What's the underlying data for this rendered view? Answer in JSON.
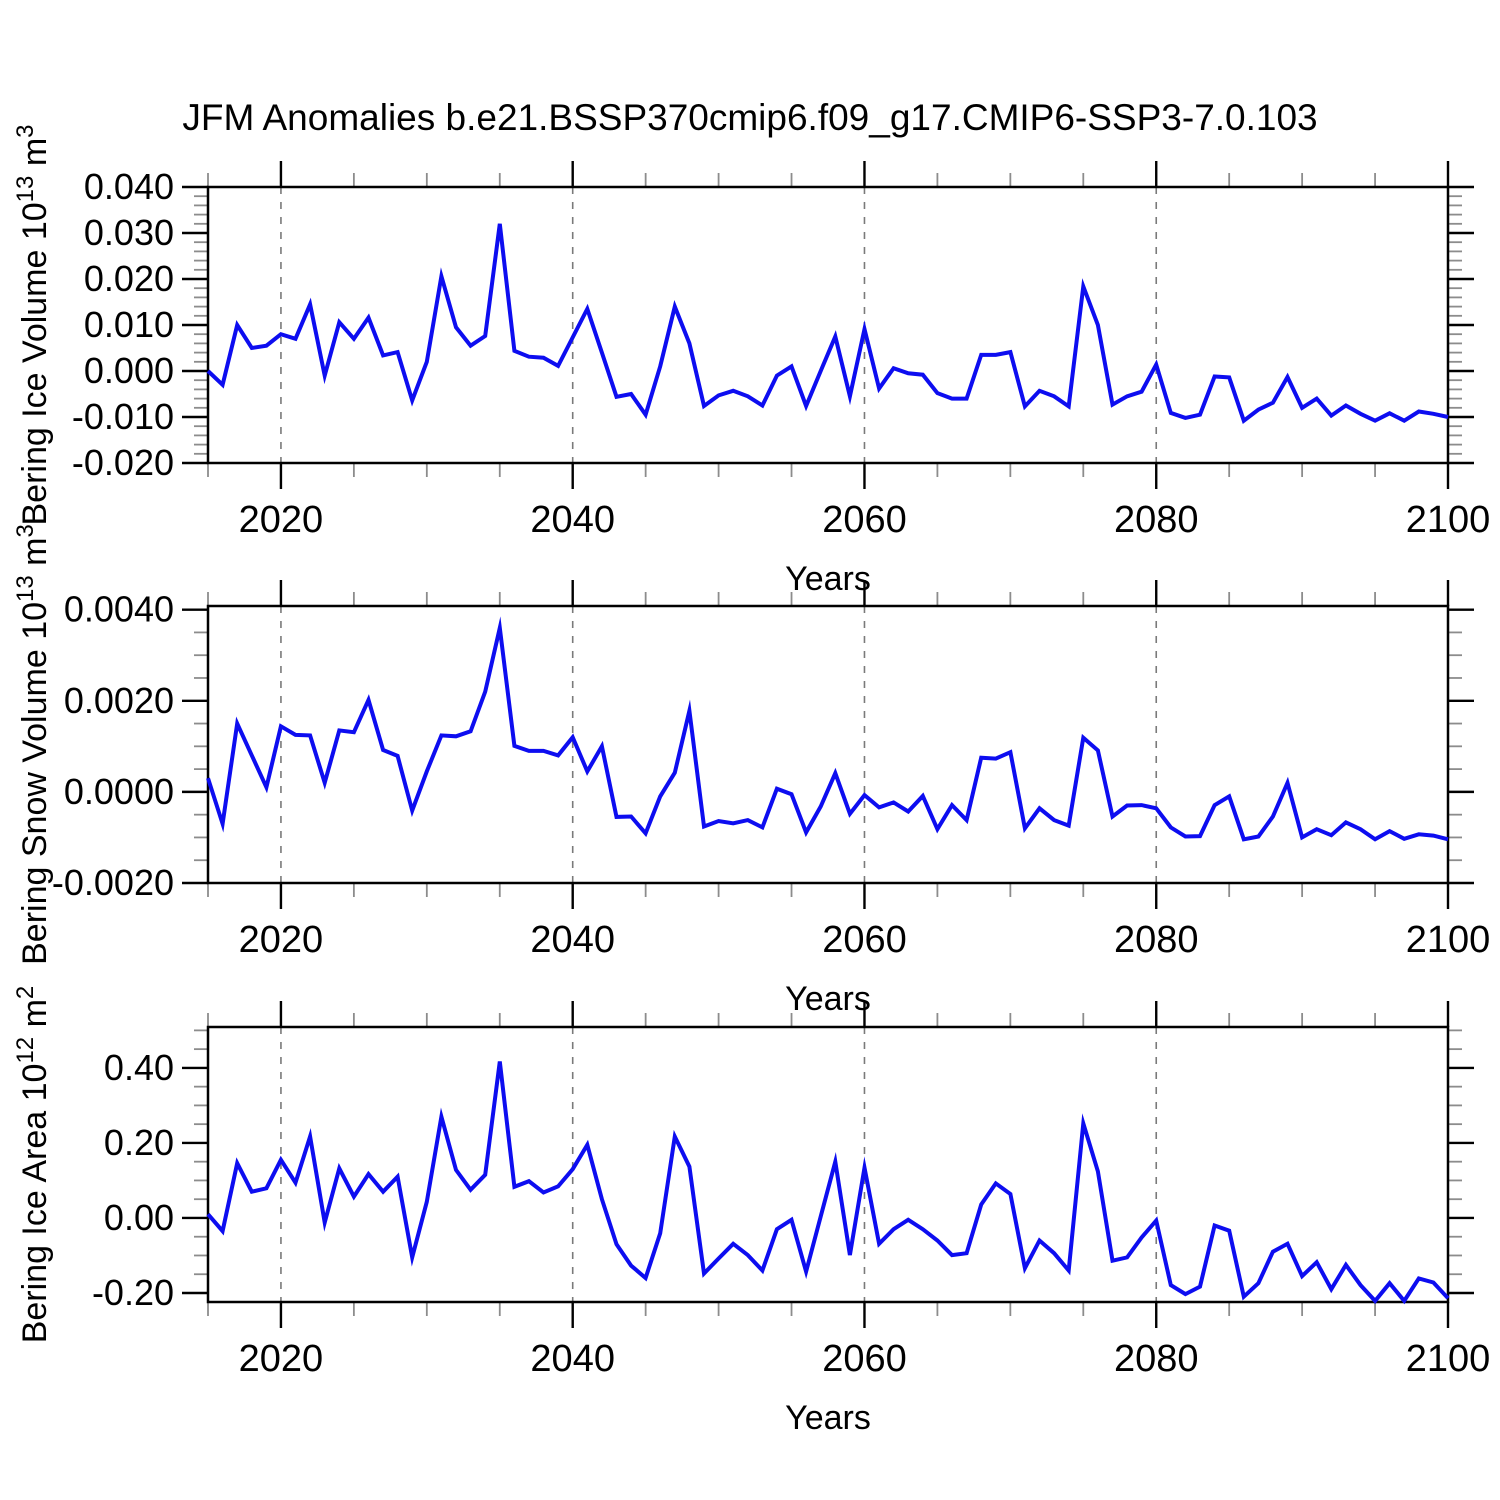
{
  "title": "JFM Anomalies b.e21.BSSP370cmip6.f09_g17.CMIP6-SSP3-7.0.103",
  "xlabel": "Years",
  "line_color": "#0d0df0",
  "grid_color": "#7a7a7a",
  "axis_color": "#000000",
  "minor_tick_color": "#8c8c8c",
  "x_axis": {
    "lim": [
      2015,
      2100
    ],
    "major_tick_years": [
      2020,
      2040,
      2060,
      2080,
      2100
    ],
    "tick_labels": [
      "2020",
      "2040",
      "2060",
      "2080",
      "2100"
    ],
    "grid_years": [
      2020,
      2040,
      2060,
      2080
    ],
    "minor_step": 5
  },
  "years": {
    "start": 2015,
    "end": 2100,
    "step": 1
  },
  "chart_data": [
    {
      "type": "line",
      "name": "bering-ice-volume",
      "ylabel_parts": [
        {
          "t": "Bering Ice Volume 10"
        },
        {
          "t": "13",
          "sup": true
        },
        {
          "t": " m"
        },
        {
          "t": "3",
          "sup": true
        }
      ],
      "ylim": [
        -0.02,
        0.04
      ],
      "yticks": [
        0.04,
        0.03,
        0.02,
        0.01,
        0.0,
        -0.01,
        -0.02
      ],
      "ytick_labels": [
        "0.040",
        "0.030",
        "0.020",
        "0.010",
        "0.000",
        "-0.010",
        "-0.020"
      ],
      "y_minor_step": 0.002,
      "values": [
        0.0,
        -0.003,
        0.01,
        0.005,
        0.0055,
        0.008,
        0.007,
        0.0145,
        -0.001,
        0.0106,
        0.007,
        0.0116,
        0.0034,
        0.0041,
        -0.0064,
        0.002,
        0.0206,
        0.0095,
        0.0055,
        0.0076,
        0.032,
        0.0044,
        0.0031,
        0.0029,
        0.0011,
        0.0073,
        0.0135,
        0.004,
        -0.0056,
        -0.005,
        -0.0095,
        0.001,
        0.014,
        0.006,
        -0.0076,
        -0.0053,
        -0.0043,
        -0.0055,
        -0.0075,
        -0.001,
        0.001,
        -0.0076,
        0.0,
        0.0075,
        -0.0055,
        0.0091,
        -0.0038,
        0.0006,
        -0.0005,
        -0.0008,
        -0.0048,
        -0.006,
        -0.006,
        0.0035,
        0.0035,
        0.0041,
        -0.0077,
        -0.0043,
        -0.0055,
        -0.0077,
        0.0184,
        0.01,
        -0.0073,
        -0.0055,
        -0.0045,
        0.0014,
        -0.0091,
        -0.0102,
        -0.0095,
        -0.0012,
        -0.0014,
        -0.0108,
        -0.0084,
        -0.0069,
        -0.0013,
        -0.008,
        -0.006,
        -0.0097,
        -0.0075,
        -0.0093,
        -0.0108,
        -0.0092,
        -0.0108,
        -0.0088,
        -0.0093,
        -0.01
      ]
    },
    {
      "type": "line",
      "name": "bering-snow-volume",
      "ylabel_parts": [
        {
          "t": "Bering Snow Volume 10"
        },
        {
          "t": "13",
          "sup": true
        },
        {
          "t": " m"
        },
        {
          "t": "3",
          "sup": true
        }
      ],
      "ylim": [
        -0.002,
        0.00408
      ],
      "yticks": [
        0.004,
        0.002,
        0.0,
        -0.002
      ],
      "ytick_labels": [
        "0.0040",
        "0.0020",
        "0.0000",
        "-0.0020"
      ],
      "y_minor_step": 0.0005,
      "values": [
        0.0003,
        -0.0007,
        0.0015,
        0.0008,
        0.0001,
        0.00144,
        0.00125,
        0.00124,
        0.0002,
        0.00135,
        0.00131,
        0.00202,
        0.00092,
        0.00079,
        -0.00041,
        0.00045,
        0.00124,
        0.00122,
        0.00133,
        0.0022,
        0.0036,
        0.00101,
        0.0009,
        0.0009,
        0.0008,
        0.0012,
        0.00045,
        0.001,
        -0.00055,
        -0.00054,
        -0.00091,
        -0.0001,
        0.00042,
        0.00178,
        -0.00076,
        -0.00064,
        -0.00069,
        -0.00062,
        -0.00078,
        7e-05,
        -5e-05,
        -0.00089,
        -0.00032,
        0.00041,
        -0.00048,
        -7e-05,
        -0.00034,
        -0.00023,
        -0.00043,
        -9e-05,
        -0.00082,
        -0.00029,
        -0.00062,
        0.00075,
        0.00073,
        0.00087,
        -0.0008,
        -0.00036,
        -0.00062,
        -0.00074,
        0.00119,
        0.00091,
        -0.00054,
        -0.0003,
        -0.00029,
        -0.00036,
        -0.00078,
        -0.00098,
        -0.00097,
        -0.00029,
        -0.0001,
        -0.00104,
        -0.00098,
        -0.00054,
        0.0002,
        -0.001,
        -0.00082,
        -0.00095,
        -0.00067,
        -0.00082,
        -0.00104,
        -0.00086,
        -0.00103,
        -0.00093,
        -0.00096,
        -0.00104
      ]
    },
    {
      "type": "line",
      "name": "bering-ice-area",
      "ylabel_parts": [
        {
          "t": "Bering Ice Area 10"
        },
        {
          "t": "12",
          "sup": true
        },
        {
          "t": " m"
        },
        {
          "t": "2",
          "sup": true
        }
      ],
      "ylim": [
        -0.224,
        0.509
      ],
      "yticks": [
        0.4,
        0.2,
        0.0,
        -0.2
      ],
      "ytick_labels": [
        "0.40",
        "0.20",
        "0.00",
        "-0.20"
      ],
      "y_minor_step": 0.05,
      "values": [
        0.01,
        -0.035,
        0.146,
        0.07,
        0.079,
        0.155,
        0.094,
        0.217,
        -0.012,
        0.132,
        0.057,
        0.117,
        0.07,
        0.11,
        -0.105,
        0.043,
        0.27,
        0.128,
        0.075,
        0.115,
        0.417,
        0.083,
        0.098,
        0.068,
        0.084,
        0.13,
        0.195,
        0.05,
        -0.07,
        -0.127,
        -0.16,
        -0.041,
        0.217,
        0.137,
        -0.148,
        -0.108,
        -0.069,
        -0.099,
        -0.14,
        -0.03,
        -0.005,
        -0.143,
        0.004,
        0.15,
        -0.099,
        0.134,
        -0.069,
        -0.03,
        -0.005,
        -0.03,
        -0.06,
        -0.099,
        -0.094,
        0.036,
        0.092,
        0.064,
        -0.134,
        -0.06,
        -0.094,
        -0.14,
        0.252,
        0.124,
        -0.114,
        -0.105,
        -0.052,
        -0.007,
        -0.179,
        -0.203,
        -0.183,
        -0.02,
        -0.034,
        -0.21,
        -0.174,
        -0.09,
        -0.069,
        -0.155,
        -0.118,
        -0.19,
        -0.125,
        -0.179,
        -0.221,
        -0.174,
        -0.221,
        -0.161,
        -0.172,
        -0.214
      ]
    }
  ]
}
